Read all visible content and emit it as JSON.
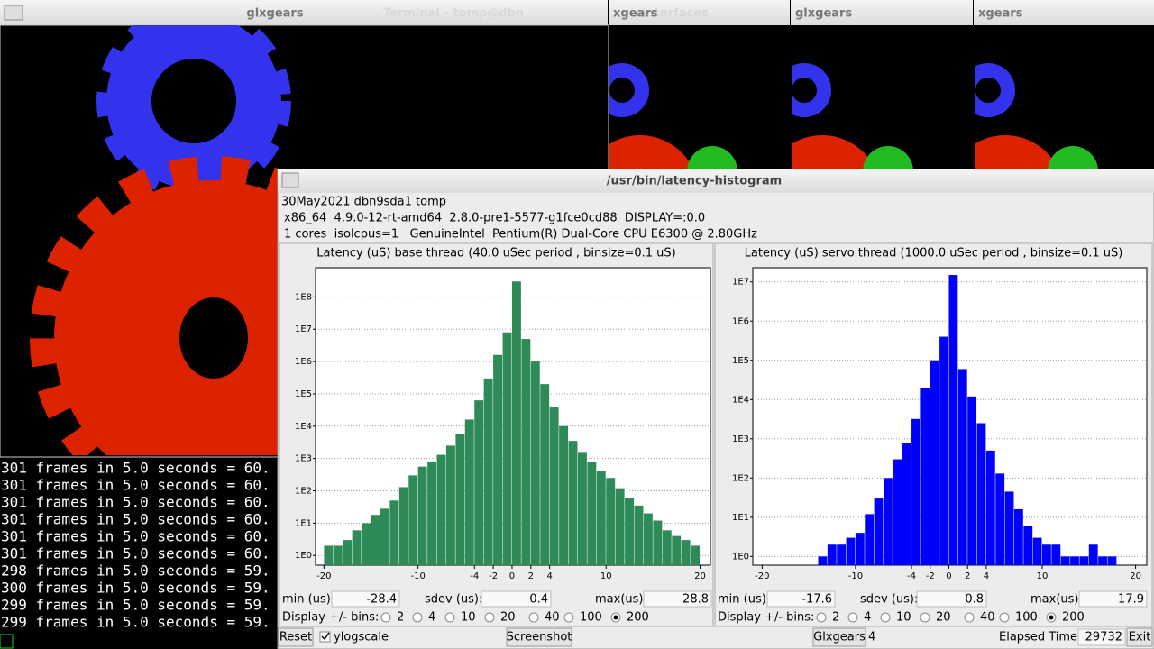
{
  "windows": {
    "main_title": "glxgears",
    "terminal_title": "Terminal - tomp@dbn",
    "win2_title": "xgears",
    "win2_faded": "interfaces",
    "win3_title": "glxgears",
    "win4_title": "xgears"
  },
  "terminal": {
    "lines": [
      "301 frames in 5.0 seconds = 60.",
      "301 frames in 5.0 seconds = 60.",
      "301 frames in 5.0 seconds = 60.",
      "301 frames in 5.0 seconds = 60.",
      "301 frames in 5.0 seconds = 60.",
      "301 frames in 5.0 seconds = 60.",
      "298 frames in 5.0 seconds = 59.",
      "300 frames in 5.0 seconds = 59.",
      "299 frames in 5.0 seconds = 59.",
      "299 frames in 5.0 seconds = 59."
    ]
  },
  "histogram_window": {
    "title": "/usr/bin/latency-histogram",
    "info": [
      "30May2021 dbn9sda1 tomp",
      "x86_64  4.9.0-12-rt-amd64  2.8.0-pre1-5577-g1fce0cd88  DISPLAY=:0.0",
      "1 cores  isolcpus=1   GenuineIntel  Pentium(R) Dual-Core CPU E6300 @ 2.80GHz"
    ]
  },
  "chart_data": [
    {
      "type": "histogram",
      "title": "Latency (uS) base thread (40.0 uSec period , binsize=0.1 uS)",
      "color": "#2e8b57",
      "yscale": "log",
      "grid": true,
      "bins": [
        -20,
        -19,
        -18,
        -17,
        -16,
        -15,
        -14,
        -13,
        -12,
        -11,
        -10,
        -9,
        -8,
        -7,
        -6,
        -5,
        -4,
        -3,
        -2,
        -1,
        0,
        1,
        2,
        3,
        4,
        5,
        6,
        7,
        8,
        9,
        10,
        11,
        12,
        13,
        14,
        15,
        16,
        17,
        18,
        19,
        20
      ],
      "values": [
        2,
        2,
        3,
        6,
        10,
        18,
        28,
        50,
        130,
        300,
        560,
        800,
        1300,
        2500,
        5600,
        16000,
        63000,
        300000,
        1600000,
        8000000,
        300000000,
        5000000,
        1000000,
        200000,
        40000,
        10000,
        3500,
        1500,
        800,
        400,
        250,
        120,
        60,
        35,
        20,
        12,
        6,
        4,
        3,
        2
      ],
      "xlim": [
        -20.9,
        21.1
      ],
      "xticks": [
        -20,
        -10,
        -4,
        -2,
        0,
        2,
        4,
        10,
        20
      ],
      "ylim": [
        0.5,
        800000000
      ],
      "yticks": [
        {
          "value": 1,
          "label": "1E0"
        },
        {
          "value": 10,
          "label": "1E1"
        },
        {
          "value": 100,
          "label": "1E2"
        },
        {
          "value": 1000,
          "label": "1E3"
        },
        {
          "value": 10000,
          "label": "1E4"
        },
        {
          "value": 100000,
          "label": "1E5"
        },
        {
          "value": 1000000,
          "label": "1E6"
        },
        {
          "value": 10000000,
          "label": "1E7"
        },
        {
          "value": 100000000,
          "label": "1E8"
        }
      ]
    },
    {
      "type": "histogram",
      "title": "Latency (uS) servo thread (1000.0 uSec period , binsize=0.1 uS)",
      "color": "#0000ff",
      "yscale": "log",
      "grid": true,
      "bins": [
        -20,
        -19,
        -18,
        -17,
        -16,
        -15,
        -14,
        -13,
        -12,
        -11,
        -10,
        -9,
        -8,
        -7,
        -6,
        -5,
        -4,
        -3,
        -2,
        -1,
        0,
        1,
        2,
        3,
        4,
        5,
        6,
        7,
        8,
        9,
        10,
        11,
        12,
        13,
        14,
        15,
        16,
        17,
        18,
        19,
        20
      ],
      "values": [
        0,
        0,
        0,
        0,
        0,
        0,
        1,
        2,
        2,
        3,
        4,
        12,
        30,
        100,
        300,
        800,
        3200,
        20000,
        100000,
        400000,
        15000000,
        60000,
        12000,
        2500,
        500,
        130,
        45,
        16,
        6,
        3,
        2,
        2,
        1,
        1,
        1,
        2,
        1,
        1,
        0,
        0
      ],
      "xlim": [
        -21,
        21.2
      ],
      "xticks": [
        -20,
        -10,
        -4,
        -2,
        0,
        2,
        4,
        10,
        20
      ],
      "ylim": [
        0.6,
        23000000
      ],
      "yticks": [
        {
          "value": 1,
          "label": "1E0"
        },
        {
          "value": 10,
          "label": "1E1"
        },
        {
          "value": 100,
          "label": "1E2"
        },
        {
          "value": 1000,
          "label": "1E3"
        },
        {
          "value": 10000,
          "label": "1E4"
        },
        {
          "value": 100000,
          "label": "1E5"
        },
        {
          "value": 1000000,
          "label": "1E6"
        },
        {
          "value": 10000000,
          "label": "1E7"
        }
      ]
    }
  ],
  "panels": [
    {
      "min_label": "min (us)",
      "min": -28.4,
      "sdev_label": "sdev (us):",
      "sdev": 0.4,
      "max_label": "max(us)",
      "max": 28.8,
      "bins_label": "Display +/- bins:",
      "bin_options": [
        2,
        4,
        10,
        20,
        40,
        100,
        200
      ],
      "selected": 200
    },
    {
      "min_label": "min (us)",
      "min": -17.6,
      "sdev_label": "sdev (us):",
      "sdev": 0.8,
      "max_label": "max(us)",
      "max": 17.9,
      "bins_label": "Display +/- bins:",
      "bin_options": [
        2,
        4,
        10,
        20,
        40,
        100,
        200
      ],
      "selected": 200
    }
  ],
  "controls": {
    "reset": "Reset",
    "ylogscale": "ylogscale",
    "ylogscale_checked": true,
    "screenshot": "Screenshot",
    "glxgears": "Glxgears",
    "glxgears_count": 4,
    "elapsed_label": "Elapsed Time:",
    "elapsed": 29732,
    "exit": "Exit"
  }
}
